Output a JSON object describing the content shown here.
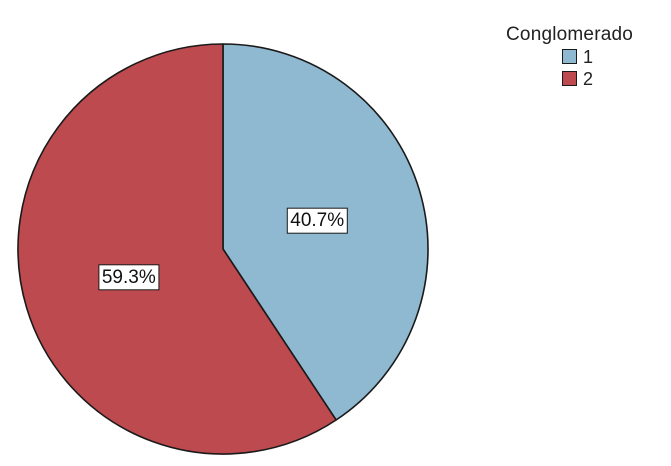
{
  "chart_data": {
    "type": "pie",
    "title": "",
    "legend_title": "Conglomerado",
    "legend_position": "top-right",
    "categories": [
      "1",
      "2"
    ],
    "values": [
      40.7,
      59.3
    ],
    "labels": [
      "40.7%",
      "59.3%"
    ],
    "colors": [
      "#8fb8d1",
      "#bd4a4f"
    ],
    "start_angle": "12 o'clock",
    "direction": "clockwise"
  }
}
